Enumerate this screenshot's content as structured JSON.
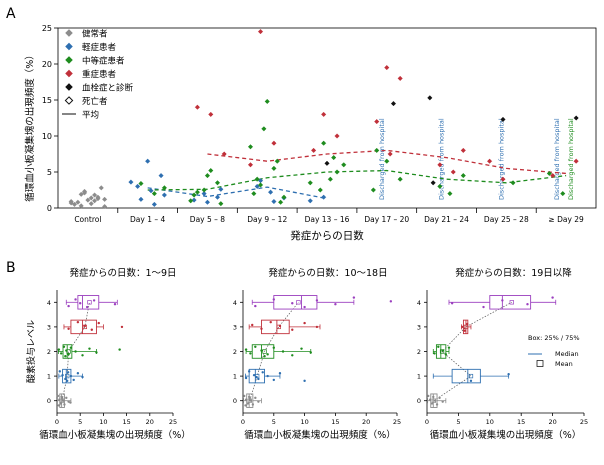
{
  "panels": {
    "a": "A",
    "b": "B"
  },
  "chart_data": [
    {
      "type": "scatter",
      "panel": "A",
      "xlabel": "発症からの日数",
      "ylabel": "循環血小板凝集塊の出現頻度（%）",
      "ylim": [
        0,
        25
      ],
      "yticks": [
        0,
        5,
        10,
        15,
        20,
        25
      ],
      "categories": [
        "Control",
        "Day 1 – 4",
        "Day 5 – 8",
        "Day 9 – 12",
        "Day 13 – 16",
        "Day 17 – 20",
        "Day 21 – 24",
        "Day 25 – 28",
        "≥ Day 29"
      ],
      "discharged_label": "Discharged from hospital",
      "discharged_columns": [
        5,
        6,
        7,
        8,
        8
      ],
      "legend": [
        {
          "label": "健常者",
          "marker": "diamond",
          "color": "#8c8c8c"
        },
        {
          "label": "軽症患者",
          "marker": "diamond",
          "color": "#2e6fb0"
        },
        {
          "label": "中等症患者",
          "marker": "diamond",
          "color": "#1e8c1e"
        },
        {
          "label": "重症患者",
          "marker": "diamond",
          "color": "#c0303a"
        },
        {
          "label": "血栓症と診断",
          "marker": "diamond",
          "color": "#111111"
        },
        {
          "label": "死亡者",
          "marker": "diamond-open",
          "color": "#111111"
        },
        {
          "label": "平均",
          "marker": "line",
          "color": "#333333"
        }
      ],
      "colors": {
        "control": "#8c8c8c",
        "mild": "#2e6fb0",
        "moderate": "#1e8c1e",
        "severe": "#c0303a",
        "thrombosis": "#111111"
      },
      "series": [
        {
          "name": "健常者",
          "group": "control",
          "points": [
            [
              0,
              0.6
            ],
            [
              0,
              1.2
            ],
            [
              0,
              0.3
            ],
            [
              0,
              1.8
            ],
            [
              0,
              0.9
            ],
            [
              0,
              2.3
            ],
            [
              0,
              1.5
            ],
            [
              0,
              0.5
            ],
            [
              0,
              1.1
            ],
            [
              0,
              2.8
            ],
            [
              0,
              0.8
            ],
            [
              0,
              1.4
            ],
            [
              0,
              0.2
            ],
            [
              0,
              1.9
            ],
            [
              0,
              1.0
            ],
            [
              0,
              0.7
            ],
            [
              0,
              2.1
            ],
            [
              0,
              1.3
            ]
          ]
        },
        {
          "name": "軽症患者",
          "group": "mild",
          "points": [
            [
              1,
              6.5
            ],
            [
              1,
              4.5
            ],
            [
              1,
              3.0
            ],
            [
              1,
              2.4
            ],
            [
              1,
              1.8
            ],
            [
              1,
              1.2
            ],
            [
              1,
              0.5
            ],
            [
              1,
              3.6
            ],
            [
              2,
              2.0
            ],
            [
              2,
              1.5
            ],
            [
              2,
              1.1
            ],
            [
              2,
              0.8
            ],
            [
              2,
              2.6
            ],
            [
              3,
              3.0
            ],
            [
              3,
              2.2
            ],
            [
              3,
              1.4
            ],
            [
              3,
              3.8
            ],
            [
              3,
              0.9
            ],
            [
              4,
              1.0
            ],
            [
              4,
              1.5
            ]
          ]
        },
        {
          "name": "中等症患者",
          "group": "moderate",
          "points": [
            [
              1,
              2.8
            ],
            [
              1,
              3.4
            ],
            [
              1,
              2.0
            ],
            [
              2,
              1.0
            ],
            [
              2,
              2.5
            ],
            [
              2,
              3.5
            ],
            [
              2,
              1.8
            ],
            [
              2,
              4.5
            ],
            [
              2,
              0.6
            ],
            [
              2,
              2.2
            ],
            [
              2,
              5.2
            ],
            [
              3,
              1.5
            ],
            [
              3,
              3.2
            ],
            [
              3,
              5.5
            ],
            [
              3,
              8.5
            ],
            [
              3,
              11.0
            ],
            [
              3,
              6.5
            ],
            [
              3,
              2.0
            ],
            [
              3,
              14.8
            ],
            [
              3,
              0.8
            ],
            [
              3,
              4.0
            ],
            [
              4,
              4.0
            ],
            [
              4,
              6.0
            ],
            [
              4,
              2.5
            ],
            [
              4,
              7.0
            ],
            [
              4,
              3.5
            ],
            [
              4,
              9.0
            ],
            [
              4,
              5.0
            ],
            [
              5,
              2.5
            ],
            [
              5,
              6.5
            ],
            [
              5,
              4.0
            ],
            [
              5,
              8.0
            ],
            [
              6,
              2.0
            ],
            [
              6,
              4.5
            ],
            [
              6,
              3.0
            ],
            [
              7,
              3.5
            ],
            [
              8,
              4.8
            ],
            [
              8,
              2.0
            ]
          ]
        },
        {
          "name": "重症患者",
          "group": "severe",
          "points": [
            [
              2,
              14.0
            ],
            [
              2,
              13.0
            ],
            [
              2,
              7.5
            ],
            [
              3,
              24.5
            ],
            [
              3,
              9.0
            ],
            [
              3,
              6.0
            ],
            [
              4,
              13.0
            ],
            [
              4,
              10.0
            ],
            [
              4,
              8.0
            ],
            [
              5,
              19.5
            ],
            [
              5,
              18.0
            ],
            [
              5,
              12.0
            ],
            [
              5,
              7.5
            ],
            [
              6,
              8.0
            ],
            [
              6,
              6.0
            ],
            [
              6,
              5.0
            ],
            [
              7,
              6.5
            ],
            [
              7,
              4.0
            ],
            [
              8,
              6.5
            ],
            [
              8,
              4.5
            ]
          ]
        },
        {
          "name": "血栓症と診断",
          "group": "thrombosis",
          "points": [
            [
              5,
              14.5
            ],
            [
              6,
              15.3
            ],
            [
              7,
              12.3
            ],
            [
              8,
              12.5
            ],
            [
              6,
              3.5
            ],
            [
              4,
              6.2
            ]
          ]
        }
      ],
      "means": [
        {
          "name": "軽症患者",
          "group": "mild",
          "x": [
            1,
            2,
            3,
            4
          ],
          "values": [
            2.8,
            1.6,
            2.9,
            1.3
          ]
        },
        {
          "name": "中等症患者",
          "group": "moderate",
          "x": [
            1,
            2,
            3,
            4,
            5,
            6,
            7,
            8
          ],
          "values": [
            2.5,
            2.6,
            4.2,
            5.0,
            5.2,
            4.0,
            3.5,
            4.5
          ]
        },
        {
          "name": "重症患者",
          "group": "severe",
          "x": [
            2,
            3,
            4,
            5,
            6,
            7,
            8
          ],
          "values": [
            7.5,
            6.5,
            7.5,
            8.0,
            7.0,
            5.5,
            4.8
          ]
        }
      ]
    },
    {
      "type": "box",
      "panel": "B1",
      "title": "発症からの日数：1〜9日",
      "xlabel": "循環血小板凝集塊の出現頻度（%）",
      "ylabel": "酸素投与レベル",
      "xlim": [
        0,
        25
      ],
      "xticks": [
        0,
        5,
        10,
        15,
        20,
        25
      ],
      "yticks": [
        0,
        1,
        2,
        3,
        4
      ],
      "boxes": [
        {
          "level": 0,
          "group": "control",
          "q1": 0.6,
          "median": 1.0,
          "q3": 1.6,
          "mean": 1.1,
          "wmin": 0.1,
          "wmax": 3.0
        },
        {
          "level": 1,
          "group": "mild",
          "q1": 1.2,
          "median": 2.0,
          "q3": 3.0,
          "mean": 2.2,
          "wmin": 0.4,
          "wmax": 5.5
        },
        {
          "level": 2,
          "group": "moderate",
          "q1": 1.3,
          "median": 2.2,
          "q3": 3.2,
          "mean": 2.5,
          "wmin": 0.3,
          "wmax": 8.5
        },
        {
          "level": 3,
          "group": "severe",
          "q1": 3.0,
          "median": 5.5,
          "q3": 8.5,
          "mean": 6.0,
          "wmin": 1.5,
          "wmax": 10.0
        },
        {
          "level": 4,
          "group": "violet",
          "q1": 4.5,
          "median": 5.5,
          "q3": 9.0,
          "mean": 7.0,
          "wmin": 2.0,
          "wmax": 13.0
        }
      ],
      "points": [
        [
          0,
          0.2
        ],
        [
          0,
          0.5
        ],
        [
          0,
          0.8
        ],
        [
          0,
          1.0
        ],
        [
          0,
          1.3
        ],
        [
          0,
          1.6
        ],
        [
          0,
          2.0
        ],
        [
          0,
          2.5
        ],
        [
          0,
          0.4
        ],
        [
          0,
          1.1
        ],
        [
          0,
          2.9
        ],
        [
          1,
          0.6
        ],
        [
          1,
          1.2
        ],
        [
          1,
          1.8
        ],
        [
          1,
          2.4
        ],
        [
          1,
          3.0
        ],
        [
          1,
          3.6
        ],
        [
          1,
          4.5
        ],
        [
          1,
          5.5
        ],
        [
          1,
          2.2
        ],
        [
          2,
          0.4
        ],
        [
          2,
          0.9
        ],
        [
          2,
          1.5
        ],
        [
          2,
          2.0
        ],
        [
          2,
          2.5
        ],
        [
          2,
          3.0
        ],
        [
          2,
          4.0
        ],
        [
          2,
          5.5
        ],
        [
          2,
          7.0
        ],
        [
          2,
          8.5
        ],
        [
          2,
          1.8
        ],
        [
          2,
          13.5
        ],
        [
          3,
          2.5
        ],
        [
          3,
          4.5
        ],
        [
          3,
          6.0
        ],
        [
          3,
          7.5
        ],
        [
          3,
          9.0
        ],
        [
          3,
          14.0
        ],
        [
          4,
          2.5
        ],
        [
          4,
          4.0
        ],
        [
          4,
          5.0
        ],
        [
          4,
          6.5
        ],
        [
          4,
          8.0
        ],
        [
          4,
          12.5
        ]
      ]
    },
    {
      "type": "box",
      "panel": "B2",
      "title": "発症からの日数：10〜18日",
      "xlabel": "循環血小板凝集塊の出現頻度（%）",
      "ylabel": "",
      "xlim": [
        0,
        25
      ],
      "xticks": [
        0,
        5,
        10,
        15,
        20,
        25
      ],
      "yticks": [
        0,
        1,
        2,
        3,
        4
      ],
      "boxes": [
        {
          "level": 0,
          "group": "control",
          "q1": 0.6,
          "median": 1.0,
          "q3": 1.6,
          "mean": 1.1,
          "wmin": 0.1,
          "wmax": 3.0
        },
        {
          "level": 1,
          "group": "mild",
          "q1": 1.0,
          "median": 2.0,
          "q3": 3.5,
          "mean": 2.3,
          "wmin": 0.4,
          "wmax": 6.0
        },
        {
          "level": 2,
          "group": "moderate",
          "q1": 1.5,
          "median": 3.0,
          "q3": 5.0,
          "mean": 3.5,
          "wmin": 0.5,
          "wmax": 11.0
        },
        {
          "level": 3,
          "group": "severe",
          "q1": 3.0,
          "median": 5.5,
          "q3": 7.5,
          "mean": 5.8,
          "wmin": 1.0,
          "wmax": 12.5
        },
        {
          "level": 4,
          "group": "violet",
          "q1": 5.0,
          "median": 9.5,
          "q3": 12.0,
          "mean": 9.0,
          "wmin": 1.5,
          "wmax": 18.0
        }
      ],
      "points": [
        [
          0,
          0.2
        ],
        [
          0,
          0.5
        ],
        [
          0,
          0.8
        ],
        [
          0,
          1.0
        ],
        [
          0,
          1.3
        ],
        [
          0,
          1.6
        ],
        [
          0,
          2.0
        ],
        [
          0,
          2.5
        ],
        [
          0,
          0.4
        ],
        [
          0,
          1.1
        ],
        [
          1,
          0.5
        ],
        [
          1,
          1.0
        ],
        [
          1,
          1.8
        ],
        [
          1,
          2.5
        ],
        [
          1,
          3.2
        ],
        [
          1,
          4.0
        ],
        [
          1,
          5.0
        ],
        [
          1,
          6.0
        ],
        [
          1,
          2.2
        ],
        [
          1,
          10.0
        ],
        [
          2,
          0.5
        ],
        [
          2,
          1.2
        ],
        [
          2,
          2.0
        ],
        [
          2,
          3.0
        ],
        [
          2,
          4.0
        ],
        [
          2,
          5.0
        ],
        [
          2,
          6.5
        ],
        [
          2,
          8.0
        ],
        [
          2,
          9.5
        ],
        [
          2,
          11.0
        ],
        [
          2,
          3.5
        ],
        [
          3,
          1.5
        ],
        [
          3,
          3.0
        ],
        [
          3,
          4.5
        ],
        [
          3,
          6.0
        ],
        [
          3,
          8.0
        ],
        [
          3,
          10.0
        ],
        [
          3,
          12.0
        ],
        [
          4,
          2.0
        ],
        [
          4,
          5.0
        ],
        [
          4,
          8.0
        ],
        [
          4,
          10.0
        ],
        [
          4,
          12.0
        ],
        [
          4,
          15.0
        ],
        [
          4,
          18.0
        ],
        [
          4,
          24.0
        ]
      ]
    },
    {
      "type": "box",
      "panel": "B3",
      "title": "発症からの日数：19日以降",
      "xlabel": "循環血小板凝集塊の出現頻度（%）",
      "ylabel": "",
      "xlim": [
        0,
        25
      ],
      "xticks": [
        0,
        5,
        10,
        15,
        20,
        25
      ],
      "yticks": [
        0,
        1,
        2,
        3,
        4
      ],
      "legend_box": "Box: 25% / 75%",
      "legend_median": "Median",
      "legend_mean": "Mean",
      "boxes": [
        {
          "level": 0,
          "group": "control",
          "q1": 0.6,
          "median": 1.0,
          "q3": 1.6,
          "mean": 1.1,
          "wmin": 0.1,
          "wmax": 3.0
        },
        {
          "level": 1,
          "group": "mild",
          "q1": 4.0,
          "median": 6.5,
          "q3": 8.5,
          "mean": 7.0,
          "wmin": 1.0,
          "wmax": 13.0
        },
        {
          "level": 2,
          "group": "moderate",
          "q1": 1.5,
          "median": 2.2,
          "q3": 3.0,
          "mean": 2.4,
          "wmin": 1.0,
          "wmax": 3.5
        },
        {
          "level": 3,
          "group": "severe",
          "q1": 5.8,
          "median": 6.2,
          "q3": 6.5,
          "mean": 6.2,
          "wmin": 5.5,
          "wmax": 7.0
        },
        {
          "level": 4,
          "group": "violet",
          "q1": 10.0,
          "median": 12.0,
          "q3": 16.5,
          "mean": 13.5,
          "wmin": 3.5,
          "wmax": 20.5
        }
      ],
      "points": [
        [
          0,
          0.2
        ],
        [
          0,
          0.5
        ],
        [
          0,
          0.8
        ],
        [
          0,
          1.0
        ],
        [
          0,
          1.3
        ],
        [
          0,
          1.6
        ],
        [
          0,
          2.0
        ],
        [
          0,
          2.5
        ],
        [
          1,
          7.0
        ],
        [
          1,
          13.0
        ],
        [
          2,
          1.2
        ],
        [
          2,
          1.8
        ],
        [
          2,
          2.5
        ],
        [
          2,
          3.0
        ],
        [
          2,
          3.5
        ],
        [
          3,
          5.6
        ],
        [
          3,
          6.0
        ],
        [
          3,
          6.4
        ],
        [
          4,
          4.0
        ],
        [
          4,
          9.0
        ],
        [
          4,
          12.0
        ],
        [
          4,
          16.0
        ],
        [
          4,
          20.0
        ]
      ]
    }
  ],
  "box_colors": {
    "control": "#8c8c8c",
    "mild": "#2e6fb0",
    "moderate": "#1e8c1e",
    "severe": "#c0303a",
    "violet": "#9b3fbf"
  }
}
